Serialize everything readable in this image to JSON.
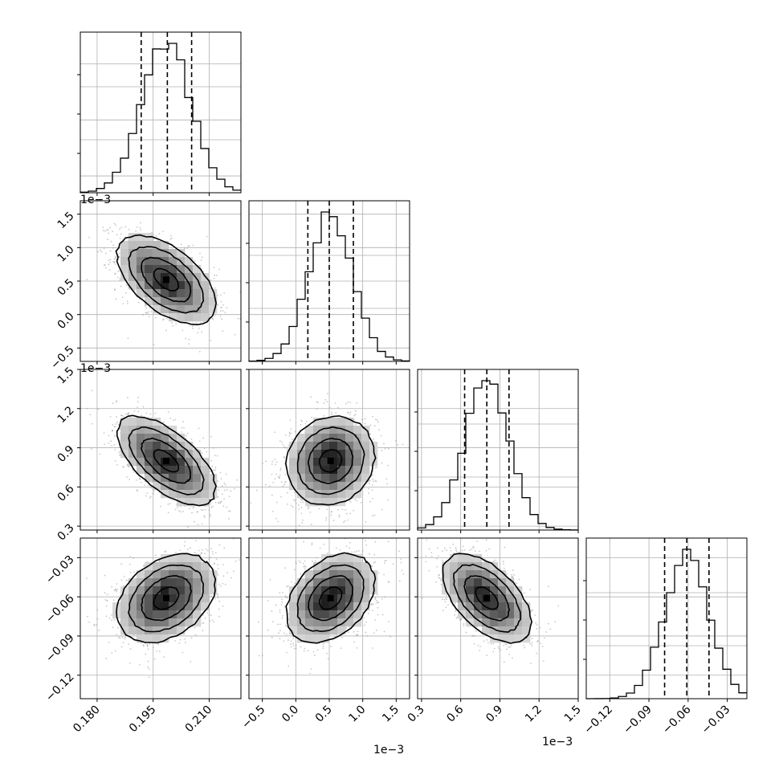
{
  "chart_data": {
    "type": "corner",
    "colors": {
      "line": "#000000",
      "grid": "#b0b0b0",
      "scatter": "#9a9a9a",
      "quantile": "#000000"
    },
    "parameters": [
      {
        "range": [
          0.1755,
          0.2185
        ],
        "ticks": [
          0.18,
          0.195,
          0.21
        ],
        "tick_labels": [
          "0.180",
          "0.195",
          "0.210"
        ],
        "offset_text": "",
        "mean": 0.1985,
        "std": 0.0066,
        "quantiles": [
          0.1918,
          0.1988,
          0.2053
        ]
      },
      {
        "range": [
          -0.7,
          1.7
        ],
        "ticks": [
          -0.5,
          0.0,
          0.5,
          1.0,
          1.5
        ],
        "tick_labels": [
          "−0.5",
          "0.0",
          "0.5",
          "1.0",
          "1.5"
        ],
        "offset_text": "1e−3",
        "mean": 0.52,
        "std": 0.33,
        "quantiles": [
          0.18,
          0.5,
          0.86
        ]
      },
      {
        "range": [
          0.27,
          1.5
        ],
        "ticks": [
          0.3,
          0.6,
          0.9,
          1.2,
          1.5
        ],
        "tick_labels": [
          "0.3",
          "0.6",
          "0.9",
          "1.2",
          "1.5"
        ],
        "offset_text": "1e−3",
        "mean": 0.8,
        "std": 0.17,
        "quantiles": [
          0.63,
          0.8,
          0.97
        ]
      },
      {
        "range": [
          -0.138,
          -0.015
        ],
        "ticks": [
          -0.12,
          -0.09,
          -0.06,
          -0.03
        ],
        "tick_labels": [
          "−0.12",
          "−0.09",
          "−0.06",
          "−0.03"
        ],
        "offset_text": "",
        "mean": -0.061,
        "std": 0.017,
        "quantiles": [
          -0.078,
          -0.061,
          -0.044
        ]
      }
    ],
    "correlations": [
      {
        "i": 1,
        "j": 0,
        "rho": -0.55
      },
      {
        "i": 2,
        "j": 0,
        "rho": -0.62
      },
      {
        "i": 2,
        "j": 1,
        "rho": 0.12
      },
      {
        "i": 3,
        "j": 0,
        "rho": 0.35
      },
      {
        "i": 3,
        "j": 1,
        "rho": 0.35
      },
      {
        "i": 3,
        "j": 2,
        "rho": -0.55
      }
    ],
    "contour_sigmas": [
      0.5,
      1.0,
      1.5,
      2.0
    ],
    "diagonal_histograms": true,
    "grid": true
  }
}
